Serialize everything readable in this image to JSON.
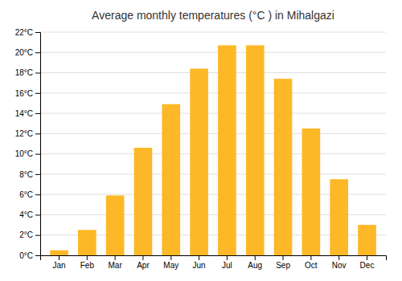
{
  "chart_data": {
    "type": "bar",
    "title": "Average monthly temperatures (°C ) in Mihalgazi",
    "categories": [
      "Jan",
      "Feb",
      "Mar",
      "Apr",
      "May",
      "Jun",
      "Jul",
      "Aug",
      "Sep",
      "Oct",
      "Nov",
      "Dec"
    ],
    "values": [
      0.5,
      2.5,
      5.9,
      10.6,
      14.9,
      18.4,
      20.7,
      20.7,
      17.4,
      12.5,
      7.5,
      3.0
    ],
    "color": "#FDB827",
    "ylim": [
      0,
      22
    ],
    "yticks": [
      {
        "value": 0,
        "label": "0°C"
      },
      {
        "value": 2,
        "label": "2°C"
      },
      {
        "value": 4,
        "label": "4°C"
      },
      {
        "value": 6,
        "label": "6°C"
      },
      {
        "value": 8,
        "label": "8°C"
      },
      {
        "value": 10,
        "label": "10°C"
      },
      {
        "value": 12,
        "label": "12°C"
      },
      {
        "value": 14,
        "label": "14°C"
      },
      {
        "value": 16,
        "label": "16°C"
      },
      {
        "value": 18,
        "label": "18°C"
      },
      {
        "value": 20,
        "label": "20°C"
      },
      {
        "value": 22,
        "label": "22°C"
      }
    ],
    "grid": true
  }
}
